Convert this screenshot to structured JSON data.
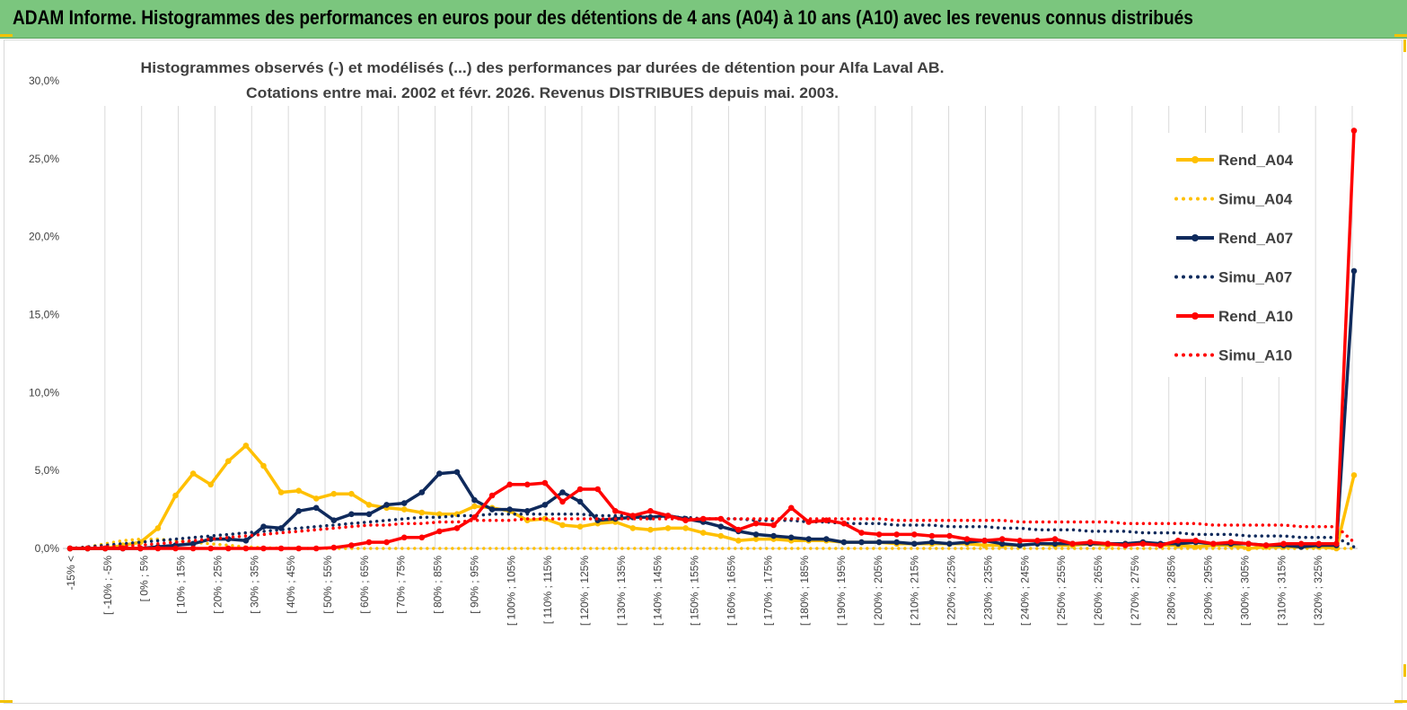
{
  "banner": {
    "title": "ADAM Informe. Histogrammes des performances en euros pour des détentions de 4 ans (A04) à 10 ans (A10) avec les revenus connus distribués"
  },
  "chart_data": {
    "type": "line",
    "title": "Histogrammes observés (-) et modélisés (...) des performances par durées de détention pour Alfa Laval AB.",
    "subtitle": "Cotations entre mai. 2002 et févr. 2026. Revenus DISTRIBUES depuis mai. 2003.",
    "xlabel": "",
    "ylabel": "",
    "ylim": [
      0,
      30
    ],
    "yticks": [
      "0,0%",
      "5,0%",
      "10,0%",
      "15,0%",
      "20,0%",
      "25,0%",
      "30,0%"
    ],
    "grid": "vertical",
    "legend_position": "right",
    "x_tick_labels": [
      "-15% <",
      "[ -10% ; -5%",
      "[ 0% ; 5%",
      "[ 10% ; 15%",
      "[ 20% ; 25%",
      "[ 30% ; 35%",
      "[ 40% ; 45%",
      "[ 50% ; 55%",
      "[ 60% ; 65%",
      "[ 70% ; 75%",
      "[ 80% ; 85%",
      "[ 90% ; 95%",
      "[ 100% ; 105%",
      "[ 110% ; 115%",
      "[ 120% ; 125%",
      "[ 130% ; 135%",
      "[ 140% ; 145%",
      "[ 150% ; 155%",
      "[ 160% ; 165%",
      "[ 170% ; 175%",
      "[ 180% ; 185%",
      "[ 190% ; 195%",
      "[ 200% ; 205%",
      "[ 210% ; 215%",
      "[ 220% ; 225%",
      "[ 230% ; 235%",
      "[ 240% ; 245%",
      "[ 250% ; 255%",
      "[ 260% ; 265%",
      "[ 270% ; 275%",
      "[ 280% ; 285%",
      "[ 290% ; 295%",
      "[ 300% ; 305%",
      "[ 310% ; 315%",
      "[ 320% ; 325%"
    ],
    "series": [
      {
        "name": "Rend_A04",
        "color": "#ffc000",
        "style": "solid",
        "markers": true,
        "values": [
          0,
          0,
          0,
          0.2,
          0.4,
          1.3,
          3.4,
          4.8,
          4.1,
          5.6,
          6.6,
          5.3,
          3.6,
          3.7,
          3.2,
          3.5,
          3.5,
          2.8,
          2.6,
          2.5,
          2.3,
          2.2,
          2.2,
          2.7,
          2.6,
          2.4,
          1.8,
          1.9,
          1.5,
          1.4,
          1.6,
          1.7,
          1.3,
          1.2,
          1.3,
          1.3,
          1.0,
          0.8,
          0.5,
          0.6,
          0.6,
          0.5,
          0.5,
          0.5,
          0.4,
          0.4,
          0.4,
          0.3,
          0.3,
          0.3,
          0.3,
          0.3,
          0.2,
          0.2,
          0.2,
          0.3,
          0.2,
          0.2,
          0.3,
          0.2,
          0.3,
          0.3,
          0.2,
          0.2,
          0.1,
          0.2,
          0.2,
          0,
          0.1,
          0.1,
          0.1,
          0.1,
          0,
          4.7
        ]
      },
      {
        "name": "Simu_A04",
        "color": "#ffc000",
        "style": "dotted",
        "markers": false,
        "values": [
          0,
          0.1,
          0.3,
          0.5,
          0.6,
          0.6,
          0.5,
          0.4,
          0.3,
          0.2,
          0.1,
          0.05,
          0.02,
          0,
          0,
          0,
          0,
          0,
          0,
          0,
          0,
          0,
          0,
          0,
          0,
          0,
          0,
          0,
          0,
          0,
          0,
          0,
          0,
          0,
          0,
          0,
          0,
          0,
          0,
          0,
          0,
          0,
          0,
          0,
          0,
          0,
          0,
          0,
          0,
          0,
          0,
          0,
          0,
          0,
          0,
          0,
          0,
          0,
          0,
          0,
          0,
          0,
          0,
          0,
          0,
          0,
          0,
          0,
          0,
          0,
          0,
          0,
          0,
          0
        ]
      },
      {
        "name": "Rend_A07",
        "color": "#0f2a5c",
        "style": "solid",
        "markers": true,
        "values": [
          0,
          0,
          0,
          0,
          0,
          0.1,
          0.2,
          0.3,
          0.6,
          0.6,
          0.5,
          1.4,
          1.3,
          2.4,
          2.6,
          1.8,
          2.2,
          2.2,
          2.8,
          2.9,
          3.6,
          4.8,
          4.9,
          3.1,
          2.5,
          2.5,
          2.4,
          2.8,
          3.6,
          3.0,
          1.8,
          1.9,
          2.0,
          2.0,
          2.1,
          1.9,
          1.7,
          1.4,
          1.1,
          0.9,
          0.8,
          0.7,
          0.6,
          0.6,
          0.4,
          0.4,
          0.4,
          0.4,
          0.3,
          0.4,
          0.3,
          0.4,
          0.5,
          0.3,
          0.2,
          0.3,
          0.3,
          0.3,
          0.3,
          0.3,
          0.3,
          0.4,
          0.3,
          0.3,
          0.4,
          0.3,
          0.3,
          0.3,
          0.2,
          0.2,
          0.1,
          0.2,
          0.2,
          17.8
        ]
      },
      {
        "name": "Simu_A07",
        "color": "#0f2a5c",
        "style": "dotted",
        "markers": false,
        "values": [
          0,
          0.1,
          0.2,
          0.3,
          0.4,
          0.5,
          0.6,
          0.7,
          0.8,
          0.9,
          1.0,
          1.1,
          1.2,
          1.3,
          1.4,
          1.5,
          1.6,
          1.7,
          1.8,
          1.9,
          2.0,
          2.0,
          2.1,
          2.1,
          2.2,
          2.2,
          2.2,
          2.2,
          2.2,
          2.2,
          2.1,
          2.1,
          2.1,
          2.0,
          2.0,
          2.0,
          1.9,
          1.9,
          1.9,
          1.8,
          1.8,
          1.8,
          1.7,
          1.7,
          1.6,
          1.6,
          1.6,
          1.5,
          1.5,
          1.5,
          1.4,
          1.4,
          1.4,
          1.3,
          1.3,
          1.2,
          1.2,
          1.2,
          1.1,
          1.1,
          1.1,
          1.0,
          1.0,
          1.0,
          0.9,
          0.9,
          0.9,
          0.8,
          0.8,
          0.8,
          0.7,
          0.7,
          0.7,
          0.1
        ]
      },
      {
        "name": "Rend_A10",
        "color": "#ff0000",
        "style": "solid",
        "markers": true,
        "values": [
          0,
          0,
          0,
          0,
          0,
          0,
          0,
          0,
          0,
          0,
          0,
          0,
          0,
          0,
          0,
          0.05,
          0.2,
          0.4,
          0.4,
          0.7,
          0.7,
          1.1,
          1.3,
          2.0,
          3.4,
          4.1,
          4.1,
          4.2,
          3.0,
          3.8,
          3.8,
          2.4,
          2.1,
          2.4,
          2.1,
          1.8,
          1.9,
          1.9,
          1.2,
          1.6,
          1.5,
          2.6,
          1.7,
          1.8,
          1.6,
          1.0,
          0.9,
          0.9,
          0.9,
          0.8,
          0.8,
          0.6,
          0.5,
          0.6,
          0.5,
          0.5,
          0.6,
          0.3,
          0.4,
          0.3,
          0.2,
          0.3,
          0.2,
          0.5,
          0.5,
          0.3,
          0.4,
          0.3,
          0.2,
          0.3,
          0.3,
          0.3,
          0.3,
          26.8
        ]
      },
      {
        "name": "Simu_A10",
        "color": "#ff0000",
        "style": "dotted",
        "markers": false,
        "values": [
          0,
          0.05,
          0.1,
          0.15,
          0.2,
          0.3,
          0.4,
          0.5,
          0.6,
          0.7,
          0.8,
          0.9,
          1.0,
          1.1,
          1.2,
          1.3,
          1.4,
          1.5,
          1.5,
          1.6,
          1.6,
          1.7,
          1.7,
          1.8,
          1.8,
          1.8,
          1.9,
          1.9,
          1.9,
          1.9,
          1.9,
          1.9,
          1.9,
          1.9,
          1.9,
          1.9,
          1.9,
          1.9,
          1.9,
          1.9,
          1.9,
          1.9,
          1.9,
          1.9,
          1.9,
          1.9,
          1.9,
          1.8,
          1.8,
          1.8,
          1.8,
          1.8,
          1.8,
          1.8,
          1.7,
          1.7,
          1.7,
          1.7,
          1.7,
          1.7,
          1.6,
          1.6,
          1.6,
          1.6,
          1.6,
          1.5,
          1.5,
          1.5,
          1.5,
          1.5,
          1.4,
          1.4,
          1.4,
          0.4
        ]
      }
    ]
  }
}
